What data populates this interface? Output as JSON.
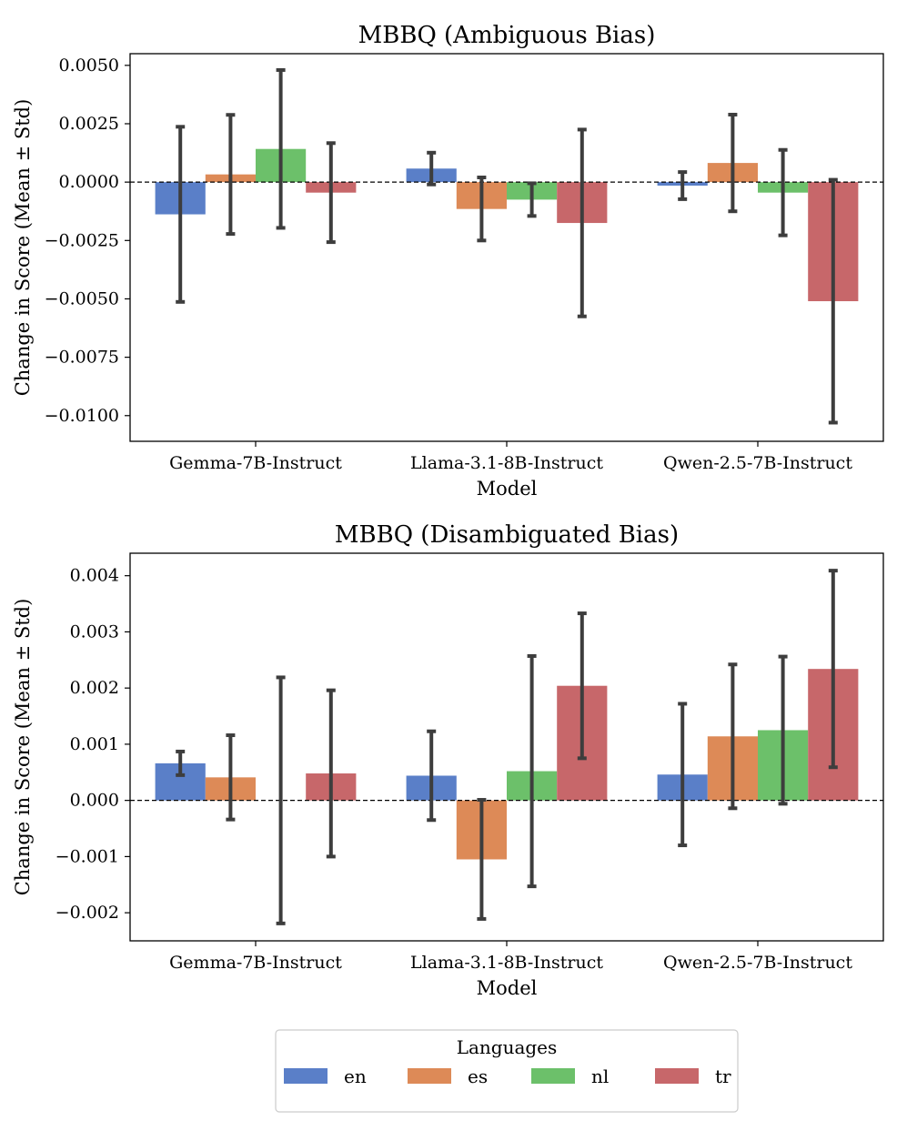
{
  "chart_data": [
    {
      "type": "bar",
      "title": "MBBQ (Ambiguous Bias)",
      "xlabel": "Model",
      "ylabel": "Change in Score (Mean ± Std)",
      "categories": [
        "Gemma-7B-Instruct",
        "Llama-3.1-8B-Instruct",
        "Qwen-2.5-7B-Instruct"
      ],
      "ylim": [
        -0.0111,
        0.0055
      ],
      "yticks": [
        0.005,
        0.0025,
        0.0,
        -0.0025,
        -0.005,
        -0.0075,
        -0.01
      ],
      "ytick_labels": [
        "0.0050",
        "0.0025",
        "0.0000",
        "−0.0025",
        "−0.0050",
        "−0.0075",
        "−0.0100"
      ],
      "reference_line": 0,
      "series": [
        {
          "name": "en",
          "values": [
            -0.00138,
            0.00058,
            -0.00015
          ],
          "std": [
            0.00375,
            0.00068,
            0.00058
          ]
        },
        {
          "name": "es",
          "values": [
            0.00033,
            -0.00115,
            0.00082
          ],
          "std": [
            0.00255,
            0.00135,
            0.00207
          ]
        },
        {
          "name": "nl",
          "values": [
            0.00142,
            -0.00075,
            -0.00045
          ],
          "std": [
            0.00338,
            0.0007,
            0.00183
          ]
        },
        {
          "name": "tr",
          "values": [
            -0.00045,
            -0.00175,
            -0.0051
          ],
          "std": [
            0.00212,
            0.004,
            0.0052
          ]
        }
      ]
    },
    {
      "type": "bar",
      "title": "MBBQ (Disambiguated Bias)",
      "xlabel": "Model",
      "ylabel": "Change in Score (Mean ± Std)",
      "categories": [
        "Gemma-7B-Instruct",
        "Llama-3.1-8B-Instruct",
        "Qwen-2.5-7B-Instruct"
      ],
      "ylim": [
        -0.0025,
        0.0044
      ],
      "yticks": [
        0.004,
        0.003,
        0.002,
        0.001,
        0.0,
        -0.001,
        -0.002
      ],
      "ytick_labels": [
        "0.004",
        "0.003",
        "0.002",
        "0.001",
        "0.000",
        "−0.001",
        "−0.002"
      ],
      "reference_line": 0,
      "series": [
        {
          "name": "en",
          "values": [
            0.00066,
            0.00044,
            0.00046
          ],
          "std": [
            0.00021,
            0.00079,
            0.00126
          ]
        },
        {
          "name": "es",
          "values": [
            0.00041,
            -0.00105,
            0.00114
          ],
          "std": [
            0.00075,
            0.00106,
            0.00128
          ]
        },
        {
          "name": "nl",
          "values": [
            0.0,
            0.00052,
            0.00125
          ],
          "std": [
            0.00219,
            0.00205,
            0.00131
          ]
        },
        {
          "name": "tr",
          "values": [
            0.00048,
            0.00204,
            0.00234
          ],
          "std": [
            0.00148,
            0.00129,
            0.00175
          ]
        }
      ]
    }
  ],
  "legend": {
    "title": "Languages",
    "placement": "bottom-center",
    "items": [
      "en",
      "es",
      "nl",
      "tr"
    ]
  },
  "colors": {
    "en": "#5a7fc8",
    "es": "#dd8a57",
    "nl": "#6cc06a",
    "tr": "#c7676a",
    "error_bar": "#3d3d3d",
    "axis": "#000000"
  }
}
